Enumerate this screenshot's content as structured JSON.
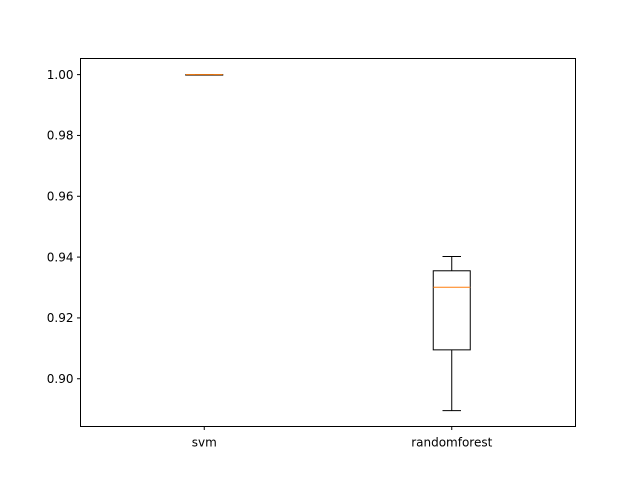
{
  "chart_data": {
    "type": "boxplot",
    "title": "",
    "xlabel": "",
    "ylabel": "",
    "categories": [
      "svm",
      "randomforest"
    ],
    "series": [
      {
        "category": "svm",
        "whisker_low": 1.0,
        "q1": 1.0,
        "median": 1.0,
        "q3": 1.0,
        "whisker_high": 1.0
      },
      {
        "category": "randomforest",
        "whisker_low": 0.8895,
        "q1": 0.9095,
        "median": 0.9301,
        "q3": 0.9355,
        "whisker_high": 0.9402
      }
    ],
    "ylim": [
      0.8843,
      1.0053
    ],
    "yticks": [
      0.9,
      0.92,
      0.94,
      0.96,
      0.98,
      1.0
    ],
    "ytick_labels": [
      "0.90",
      "0.92",
      "0.94",
      "0.96",
      "0.98",
      "1.00"
    ],
    "grid": false,
    "colors": {
      "box": "#000000",
      "median": "#ff7f0e",
      "background": "#ffffff"
    }
  }
}
